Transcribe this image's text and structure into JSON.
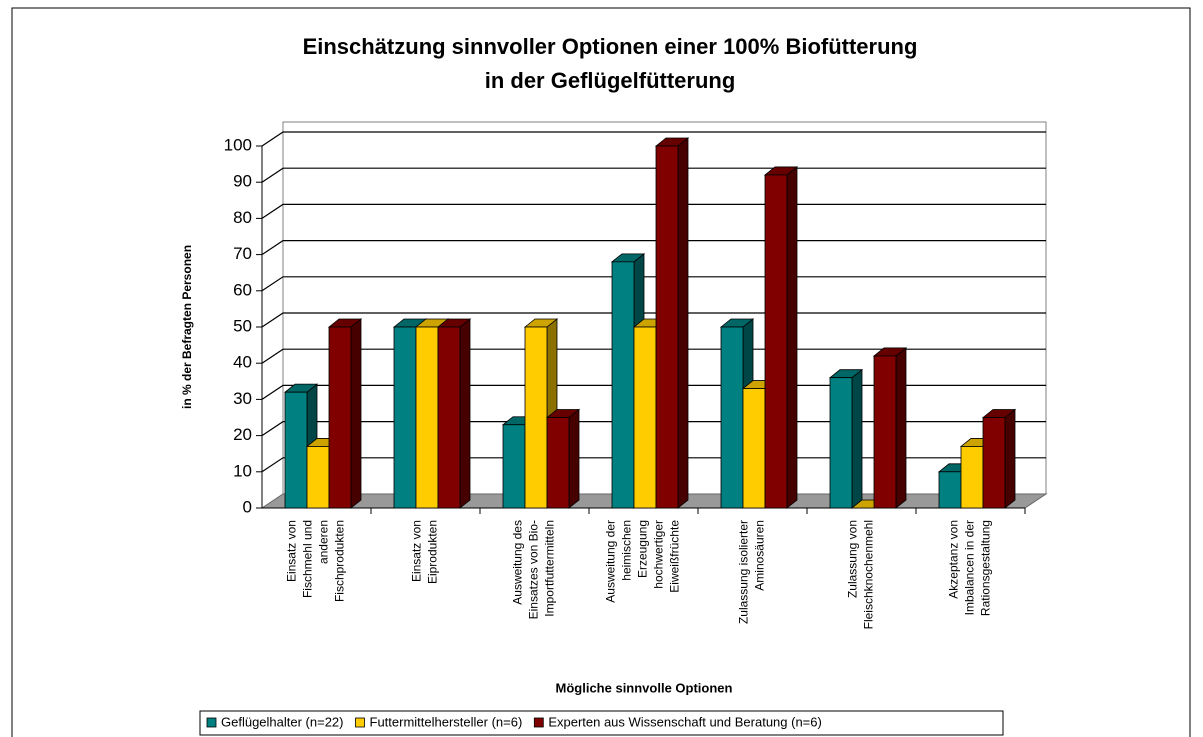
{
  "chart_data": {
    "type": "bar3d",
    "title": "Einschätzung sinnvoller Optionen einer 100% Biofütterung\nin der Geflügelfütterung",
    "y_label": "in % der Befragten Personen",
    "x_label": "Mögliche sinnvolle Optionen",
    "categories": [
      "Einsatz von\nFischmehl und\nanderen\nFischprodukten",
      "Einsatz von\nEiprodukten",
      "Ausweitung des\nEinsatzes von Bio-\nImportfuttermitteln",
      "Ausweitung der\nheimischen\nErzeugung\nhochwertiger\nEiweißfrüchte",
      "Zulassung isolierter\nAminosäuren",
      "Zulassung von\nFleischknochenmehl",
      "Akzeptanz von\nImbalancen in der\nRationsgestaltung"
    ],
    "series": [
      {
        "name": "Geflügelhalter (n=22)",
        "color": "#008080",
        "values": [
          32,
          50,
          23,
          68,
          50,
          36,
          10
        ]
      },
      {
        "name": "Futtermittelhersteller (n=6)",
        "color": "#ffcc00",
        "values": [
          17,
          50,
          50,
          50,
          33,
          0,
          17
        ]
      },
      {
        "name": "Experten aus Wissenschaft und Beratung (n=6)",
        "color": "#800000",
        "values": [
          50,
          50,
          25,
          100,
          92,
          42,
          25
        ]
      }
    ],
    "ylim": [
      0,
      100
    ],
    "yticks": [
      0,
      10,
      20,
      30,
      40,
      50,
      60,
      70,
      80,
      90,
      100
    ],
    "grid": true
  }
}
